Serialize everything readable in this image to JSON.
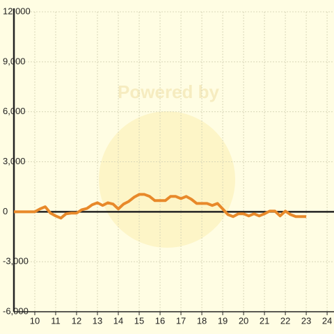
{
  "chart_data": {
    "type": "line",
    "watermark": "Powered by",
    "x": [
      9,
      10,
      10.25,
      10.5,
      10.75,
      11,
      11.25,
      11.5,
      11.75,
      12,
      12.25,
      12.5,
      12.75,
      13,
      13.25,
      13.5,
      13.75,
      14,
      14.25,
      14.5,
      14.75,
      15,
      15.25,
      15.5,
      15.75,
      16,
      16.25,
      16.5,
      16.75,
      17,
      17.25,
      17.5,
      17.75,
      18,
      18.25,
      18.5,
      18.75,
      19,
      19.25,
      19.5,
      19.75,
      20,
      20.25,
      20.5,
      20.75,
      21,
      21.25,
      21.5,
      21.75,
      22,
      22.25,
      22.5,
      22.75,
      23
    ],
    "series": [
      {
        "color": "#e8892a",
        "values": [
          0,
          0,
          170,
          300,
          -80,
          -250,
          -380,
          -120,
          -80,
          -80,
          120,
          200,
          420,
          540,
          380,
          540,
          460,
          170,
          460,
          620,
          870,
          1040,
          1040,
          920,
          670,
          670,
          670,
          920,
          920,
          790,
          920,
          750,
          500,
          500,
          500,
          380,
          500,
          170,
          -170,
          -290,
          -120,
          -120,
          -250,
          -120,
          -250,
          -120,
          40,
          40,
          -250,
          40,
          -170,
          -290,
          -290,
          -290
        ]
      }
    ],
    "xlim": [
      9,
      24.33
    ],
    "xticks": [
      10,
      11,
      12,
      13,
      14,
      15,
      16,
      17,
      18,
      19,
      20,
      21,
      22,
      23,
      24
    ],
    "ylim": [
      -6000,
      12000
    ],
    "yticks": [
      {
        "value": -6000,
        "label": "-6,000"
      },
      {
        "value": -3000,
        "label": "-3,000"
      },
      0,
      {
        "value": 3000,
        "label": "3,000"
      },
      {
        "value": 6000,
        "label": "6,000"
      },
      {
        "value": 9000,
        "label": "9,000"
      },
      {
        "value": 12000,
        "label": "12,000"
      }
    ],
    "grid": true
  }
}
